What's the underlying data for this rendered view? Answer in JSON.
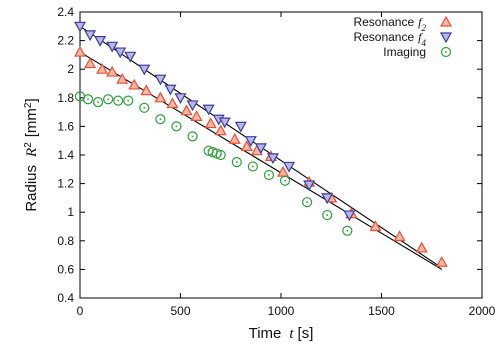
{
  "chart_data": {
    "type": "scatter",
    "xlabel": "Time",
    "xlabel_symbol": "t",
    "xlabel_unit": "[s]",
    "ylabel": "Radius",
    "ylabel_symbol": "R",
    "ylabel_unit": "[mm",
    "ylabel_unit_close": "]",
    "xlim": [
      0,
      2000
    ],
    "ylim": [
      0.4,
      2.4
    ],
    "xticks": [
      0,
      500,
      1000,
      1500,
      2000
    ],
    "yticks": [
      0.4,
      0.6,
      0.8,
      1,
      1.2,
      1.4,
      1.6,
      1.8,
      2,
      2.2,
      2.4
    ],
    "grid": false,
    "legend_position": "top-right",
    "series": [
      {
        "name": "Resonance",
        "name_symbol": "f",
        "name_subscript": "2",
        "marker": "triangle-up",
        "color": "#e8503a",
        "fill": "#f6b7a3",
        "x": [
          0,
          50,
          110,
          160,
          210,
          270,
          330,
          400,
          460,
          530,
          580,
          650,
          700,
          770,
          830,
          880,
          950,
          1010,
          1140,
          1250,
          1350,
          1470,
          1590,
          1700,
          1800
        ],
        "y": [
          2.12,
          2.04,
          2.0,
          1.98,
          1.93,
          1.89,
          1.85,
          1.8,
          1.76,
          1.71,
          1.67,
          1.62,
          1.57,
          1.51,
          1.46,
          1.43,
          1.39,
          1.28,
          1.21,
          1.1,
          0.99,
          0.9,
          0.83,
          0.75,
          0.65
        ],
        "fit": [
          [
            0,
            2.12
          ],
          [
            1800,
            0.6
          ]
        ]
      },
      {
        "name": "Resonance",
        "name_symbol": "f",
        "name_subscript": "4",
        "marker": "triangle-down",
        "color": "#3c3c9e",
        "fill": "#b7b9e6",
        "x": [
          0,
          50,
          100,
          160,
          200,
          250,
          320,
          400,
          450,
          500,
          560,
          640,
          690,
          720,
          800,
          850,
          900,
          960,
          1040,
          1140,
          1230,
          1340
        ],
        "y": [
          2.3,
          2.24,
          2.2,
          2.16,
          2.12,
          2.09,
          2.0,
          1.93,
          1.86,
          1.8,
          1.75,
          1.72,
          1.65,
          1.63,
          1.6,
          1.5,
          1.45,
          1.38,
          1.32,
          1.19,
          1.1,
          0.98
        ],
        "fit": [
          [
            0,
            2.3
          ],
          [
            1790,
            0.62
          ]
        ]
      },
      {
        "name": "Imaging",
        "marker": "circle-dot",
        "color": "#2f9e3a",
        "x": [
          0,
          40,
          90,
          140,
          190,
          240,
          320,
          400,
          480,
          560,
          640,
          660,
          680,
          700,
          780,
          860,
          940,
          1020,
          1130,
          1230,
          1330
        ],
        "y": [
          1.81,
          1.79,
          1.77,
          1.79,
          1.78,
          1.78,
          1.73,
          1.65,
          1.6,
          1.53,
          1.43,
          1.42,
          1.41,
          1.4,
          1.35,
          1.32,
          1.26,
          1.22,
          1.07,
          0.98,
          0.87
        ]
      }
    ]
  }
}
